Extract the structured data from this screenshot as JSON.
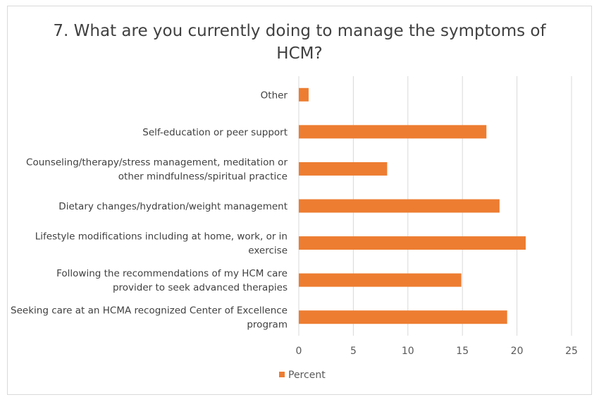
{
  "chart_data": {
    "type": "bar",
    "orientation": "horizontal",
    "title": "7. What are you currently doing to manage the symptoms of HCM?",
    "title_lines": [
      "7. What are you currently doing to manage the symptoms of",
      "HCM?"
    ],
    "categories": [
      "Other",
      "Self-education or peer support",
      "Counseling/therapy/stress management, meditation or other mindfulness/spiritual practice",
      "Dietary changes/hydration/weight management",
      "Lifestyle modifications including at home, work, or in exercise",
      "Following the recommendations of my HCM care provider to seek advanced therapies",
      "Seeking care at an HCMA recognized Center of Excellence program"
    ],
    "category_lines": [
      [
        "Other"
      ],
      [
        "Self-education or peer support"
      ],
      [
        "Counseling/therapy/stress management, meditation or",
        "other mindfulness/spiritual practice"
      ],
      [
        "Dietary changes/hydration/weight management"
      ],
      [
        "Lifestyle modifications including at home, work, or in",
        "exercise"
      ],
      [
        "Following the recommendations of my HCM care",
        "provider to seek advanced therapies"
      ],
      [
        "Seeking care at an HCMA recognized Center of Excellence",
        "program"
      ]
    ],
    "series": [
      {
        "name": "Percent",
        "values": [
          0.9,
          17.2,
          8.1,
          18.4,
          20.8,
          14.9,
          19.1
        ]
      }
    ],
    "xlim": [
      0,
      25
    ],
    "xticks": [
      0,
      5,
      10,
      15,
      20,
      25
    ],
    "grid": "vertical",
    "legend": "bottom",
    "colors": {
      "bar": "#ed7d31",
      "grid": "#d9d9d9",
      "text": "#404040"
    }
  }
}
